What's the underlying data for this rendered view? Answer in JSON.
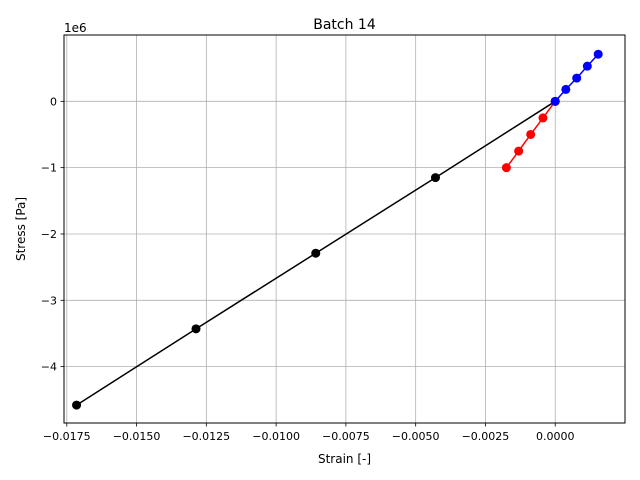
{
  "chart_data": {
    "type": "line",
    "title": "Batch 14",
    "xlabel": "Strain [-]",
    "ylabel": "Stress [Pa]",
    "y_offset_text": "1e6",
    "xlim": [
      -0.0176,
      0.0025
    ],
    "ylim": [
      -4.85,
      1.0
    ],
    "y_scale": 1000000,
    "grid": true,
    "x_ticks": [
      {
        "value": -0.0175,
        "label": "−0.0175"
      },
      {
        "value": -0.015,
        "label": "−0.0150"
      },
      {
        "value": -0.0125,
        "label": "−0.0125"
      },
      {
        "value": -0.01,
        "label": "−0.0100"
      },
      {
        "value": -0.0075,
        "label": "−0.0075"
      },
      {
        "value": -0.005,
        "label": "−0.0050"
      },
      {
        "value": -0.0025,
        "label": "−0.0025"
      },
      {
        "value": 0.0,
        "label": "0.0000"
      }
    ],
    "y_ticks": [
      {
        "value": 0,
        "label": "0"
      },
      {
        "value": -1,
        "label": "−1"
      },
      {
        "value": -2,
        "label": "−2"
      },
      {
        "value": -3,
        "label": "−3"
      },
      {
        "value": -4,
        "label": "−4"
      }
    ],
    "series": [
      {
        "color": "#000000",
        "x": [
          -0.01715,
          -0.01287,
          -0.00858,
          -0.00429,
          0.0
        ],
        "y": [
          -4.58,
          -3.43,
          -2.29,
          -1.15,
          0.0
        ]
      },
      {
        "color": "#ff0000",
        "x": [
          -0.00175,
          -0.00131,
          -0.00088,
          -0.00044,
          0.0
        ],
        "y": [
          -1.0,
          -0.75,
          -0.5,
          -0.25,
          0.0
        ]
      },
      {
        "color": "#0000ff",
        "x": [
          0.0,
          0.00038,
          0.00077,
          0.00115,
          0.00154
        ],
        "y": [
          0.0,
          0.18,
          0.35,
          0.53,
          0.71
        ]
      }
    ]
  }
}
